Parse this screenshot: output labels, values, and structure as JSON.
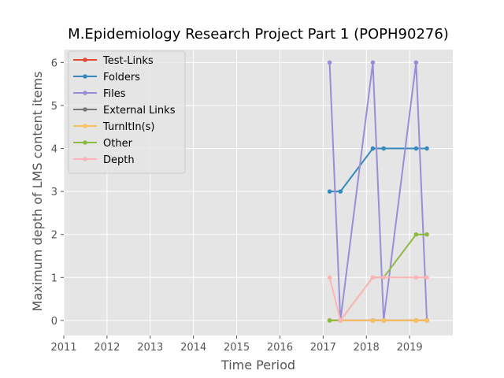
{
  "chart_data": {
    "type": "line",
    "title": "M.Epidemiology Research Project Part 1 (POPH90276)",
    "xlabel": "Time Period",
    "ylabel": "Maximum depth of LMS content items",
    "xlim": [
      2011,
      2020
    ],
    "ylim": [
      -0.35,
      6.3
    ],
    "xticks": [
      "2011",
      "2012",
      "2013",
      "2014",
      "2015",
      "2016",
      "2017",
      "2018",
      "2019"
    ],
    "yticks": [
      "0",
      "1",
      "2",
      "3",
      "4",
      "5",
      "6"
    ],
    "grid": true,
    "legend_position": "top-left",
    "x": [
      2017.15,
      2017.4,
      2018.15,
      2018.4,
      2019.15,
      2019.4
    ],
    "series": [
      {
        "name": "Test-Links",
        "color": "#E24A33",
        "values": [
          0,
          0,
          0,
          0,
          0,
          0
        ]
      },
      {
        "name": "Folders",
        "color": "#348ABD",
        "values": [
          3,
          3,
          4,
          4,
          4,
          4
        ]
      },
      {
        "name": "Files",
        "color": "#988ED5",
        "values": [
          6,
          0,
          6,
          0,
          6,
          0
        ]
      },
      {
        "name": "External Links",
        "color": "#777777",
        "values": [
          0,
          0,
          0,
          0,
          0,
          0
        ]
      },
      {
        "name": "TurnItIn(s)",
        "color": "#FBC15E",
        "values": [
          0,
          0,
          0,
          0,
          0,
          0
        ]
      },
      {
        "name": "Other",
        "color": "#8EBA42",
        "values": [
          0,
          0,
          1,
          1,
          2,
          2
        ]
      },
      {
        "name": "Depth",
        "color": "#FFB5B8",
        "values": [
          1,
          0,
          1,
          1,
          1,
          1
        ]
      }
    ]
  }
}
